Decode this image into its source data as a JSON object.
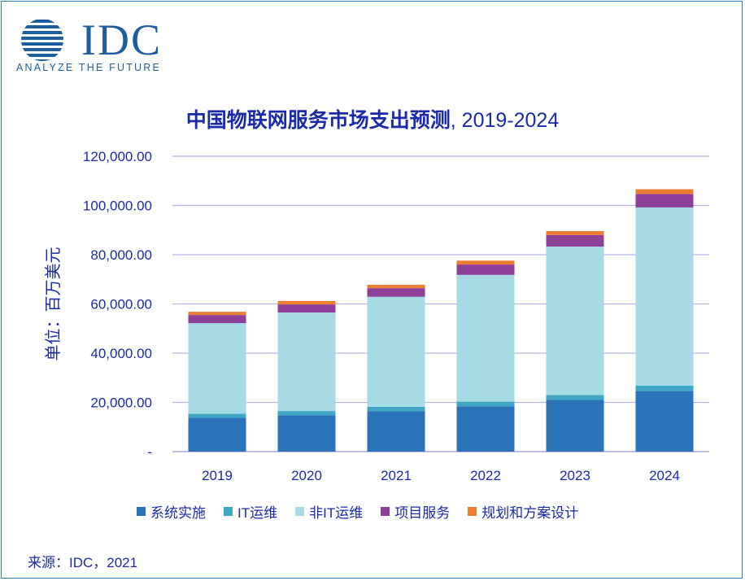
{
  "logo": {
    "name": "IDC",
    "tagline": "ANALYZE THE FUTURE"
  },
  "source": "来源：IDC，2021",
  "colors": {
    "sys": "#2a73b8",
    "it_ops": "#3fa7c4",
    "non_it_ops": "#a6dbe6",
    "project": "#8e3f97",
    "planning": "#ed7d31",
    "text": "#1a2aa8",
    "grid": "#b4b4e6"
  },
  "chart_data": {
    "type": "bar",
    "stacked": true,
    "title_main": "中国物联网服务市场支出预测",
    "title_years": ", 2019-2024",
    "ylabel": "单位：百万美元",
    "ylim": [
      0,
      120000
    ],
    "yticks": [
      0,
      20000,
      40000,
      60000,
      80000,
      100000,
      120000
    ],
    "ytick_labels": [
      "-",
      "20,000.00",
      "40,000.00",
      "60,000.00",
      "80,000.00",
      "100,000.00",
      "120,000.00"
    ],
    "categories": [
      "2019",
      "2020",
      "2021",
      "2022",
      "2023",
      "2024"
    ],
    "legend_position": "bottom",
    "grid": true,
    "series": [
      {
        "name": "系统实施",
        "color": "#2a73b8",
        "values": [
          13800,
          14800,
          16400,
          18400,
          21000,
          24600
        ]
      },
      {
        "name": "IT运维",
        "color": "#3fa7c4",
        "values": [
          1600,
          1700,
          1800,
          1900,
          2000,
          2200
        ]
      },
      {
        "name": "非IT运维",
        "color": "#a6dbe6",
        "values": [
          36800,
          40000,
          44700,
          51500,
          60300,
          72400
        ]
      },
      {
        "name": "项目服务",
        "color": "#8e3f97",
        "values": [
          3300,
          3300,
          3500,
          4200,
          4700,
          5500
        ]
      },
      {
        "name": "规划和方案设计",
        "color": "#ed7d31",
        "values": [
          1300,
          1400,
          1400,
          1600,
          1600,
          1900
        ]
      }
    ]
  }
}
